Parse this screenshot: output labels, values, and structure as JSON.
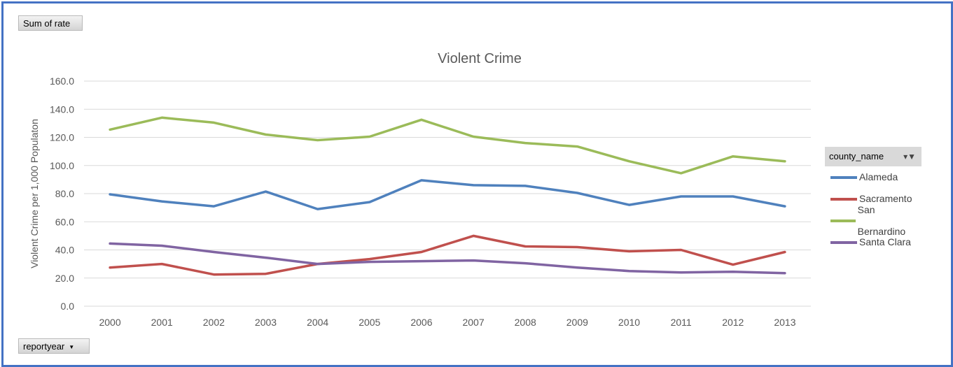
{
  "pivot": {
    "value_field": "Sum of rate",
    "axis_field": "reportyear",
    "legend_field": "county_name"
  },
  "chart_data": {
    "type": "line",
    "title": "Violent Crime",
    "xlabel": "",
    "ylabel": "Violent Crime per 1,000 Populaton",
    "categories": [
      "2000",
      "2001",
      "2002",
      "2003",
      "2004",
      "2005",
      "2006",
      "2007",
      "2008",
      "2009",
      "2010",
      "2011",
      "2012",
      "2013"
    ],
    "ylim": [
      0,
      160
    ],
    "yticks": [
      "0.0",
      "20.0",
      "40.0",
      "60.0",
      "80.0",
      "100.0",
      "120.0",
      "140.0",
      "160.0"
    ],
    "grid": true,
    "legend_position": "right",
    "series": [
      {
        "name": "Alameda",
        "color": "#4f81bd",
        "values": [
          79.5,
          74.5,
          71.0,
          81.5,
          69.0,
          74.0,
          89.5,
          86.0,
          85.5,
          80.5,
          72.0,
          78.0,
          78.0,
          71.0
        ]
      },
      {
        "name": "Sacramento",
        "color": "#c0504d",
        "values": [
          27.5,
          30.0,
          22.5,
          23.0,
          30.0,
          33.5,
          38.5,
          50.0,
          42.5,
          42.0,
          39.0,
          40.0,
          29.5,
          38.5
        ]
      },
      {
        "name": "San Bernardino",
        "color": "#9bbb59",
        "values": [
          125.5,
          134.0,
          130.5,
          122.0,
          118.0,
          120.5,
          132.5,
          120.5,
          116.0,
          113.5,
          103.0,
          94.5,
          106.5,
          103.0
        ]
      },
      {
        "name": "Santa Clara",
        "color": "#8064a2",
        "values": [
          44.5,
          43.0,
          38.5,
          34.5,
          30.0,
          31.5,
          32.0,
          32.5,
          30.5,
          27.5,
          25.0,
          24.0,
          24.5,
          23.5
        ]
      }
    ]
  }
}
